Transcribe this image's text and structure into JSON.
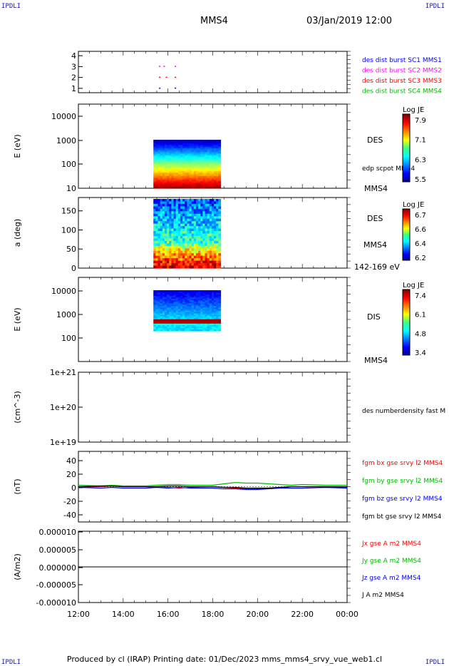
{
  "header": {
    "corner_tl": "IPDLI",
    "corner_tr": "IPDLI",
    "corner_bl": "IPDLI",
    "corner_br": "IPDLI",
    "title": "MMS4",
    "datetime": "03/Jan/2019 12:00"
  },
  "footer": {
    "text": "Produced by cl (IRAP)   Printing date: 01/Dec/2023   mms_mms4_srvy_vue_web1.cl"
  },
  "colors": {
    "blue": "#0000ff",
    "magenta": "#ff00ff",
    "red": "#ff0000",
    "green": "#00bb00",
    "black": "#000000"
  },
  "chart_data": [
    {
      "type": "scatter",
      "panel": "burst",
      "yticks": [
        "1",
        "2",
        "3",
        "4"
      ],
      "ylim": [
        0.6,
        4.4
      ],
      "legend": [
        {
          "name": "des dist burst SC1 MMS1",
          "color": "#0000ff"
        },
        {
          "name": "des dist burst SC2 MMS2",
          "color": "#ff00ff"
        },
        {
          "name": "des dist burst SC3 MMS3",
          "color": "#ff0000"
        },
        {
          "name": "des dist burst SC4 MMS4",
          "color": "#00bb00"
        }
      ],
      "points": [
        {
          "x": 15.6,
          "y": 3
        },
        {
          "x": 15.8,
          "y": 3
        },
        {
          "x": 16.3,
          "y": 3
        },
        {
          "x": 15.6,
          "y": 2
        },
        {
          "x": 15.9,
          "y": 2
        },
        {
          "x": 16.3,
          "y": 2
        },
        {
          "x": 15.6,
          "y": 1
        },
        {
          "x": 16.3,
          "y": 1
        }
      ]
    },
    {
      "type": "heatmap",
      "panel": "des-energy",
      "ylabel": "E (eV)",
      "yticks": [
        "10",
        "100",
        "1000",
        "10000"
      ],
      "ylim": [
        10,
        20000
      ],
      "xrange": [
        15.35,
        18.35
      ],
      "label": "DES",
      "sublabel": "edp scpot MMS4",
      "bottom_label": "MMS4",
      "colorbar": {
        "title": "Log JE",
        "ticks": [
          "7.9",
          "7.1",
          "6.3",
          "5.5"
        ]
      }
    },
    {
      "type": "heatmap",
      "panel": "des-pitch",
      "ylabel": "a (deg)",
      "yticks": [
        "0",
        "50",
        "100",
        "150"
      ],
      "ylim": [
        0,
        185
      ],
      "xrange": [
        15.35,
        18.35
      ],
      "label": "DES",
      "sublabel": "MMS4",
      "bottom_label": "142-169 eV",
      "colorbar": {
        "title": "Log JE",
        "ticks": [
          "6.7",
          "6.6",
          "6.4",
          "6.2"
        ]
      }
    },
    {
      "type": "heatmap",
      "panel": "dis-energy",
      "ylabel": "E (eV)",
      "yticks": [
        "100",
        "1000",
        "10000"
      ],
      "ylim": [
        10,
        20000
      ],
      "xrange": [
        15.35,
        18.35
      ],
      "label": "DIS",
      "bottom_label": "MMS4",
      "colorbar": {
        "title": "Log JE",
        "ticks": [
          "7.4",
          "6.1",
          "4.8",
          "3.4"
        ]
      }
    },
    {
      "type": "line",
      "panel": "density",
      "ylabel": "(cm^-3)",
      "yticks": [
        "1e+19",
        "1e+20",
        "1e+21"
      ],
      "legend": [
        {
          "name": "des numberdensity fast M",
          "color": "#000000"
        }
      ],
      "series": []
    },
    {
      "type": "line",
      "panel": "fgm",
      "ylabel": "(nT)",
      "yticks": [
        "-40",
        "-20",
        "0",
        "20",
        "40"
      ],
      "ylim": [
        -50,
        50
      ],
      "x": [
        12,
        13,
        13.5,
        14,
        15,
        15.5,
        16,
        16.5,
        17,
        18,
        18.5,
        19,
        19.5,
        20,
        20.5,
        21,
        21.5,
        22,
        23,
        24
      ],
      "series": [
        {
          "name": "fgm bx gse srvy l2 MMS4",
          "color": "#ff0000",
          "values": [
            -1,
            0,
            1,
            0,
            0,
            -1,
            -1,
            -2,
            -1,
            0,
            -1,
            -2,
            -3,
            -3,
            -2,
            -1,
            -2,
            -2,
            -1,
            -1
          ]
        },
        {
          "name": "fgm by gse srvy l2 MMS4",
          "color": "#00bb00",
          "values": [
            2,
            1,
            2,
            1,
            1,
            2,
            3,
            3,
            2,
            2,
            4,
            6,
            5,
            5,
            4,
            3,
            2,
            3,
            2,
            2
          ]
        },
        {
          "name": "fgm bz gse srvy l2 MMS4",
          "color": "#0000ff",
          "values": [
            -1,
            -2,
            -1,
            -2,
            -2,
            -1,
            -2,
            -1,
            -2,
            -2,
            -3,
            -3,
            -4,
            -4,
            -3,
            -2,
            -2,
            -2,
            -1,
            -2
          ]
        },
        {
          "name": "fgm bt gse srvy l2 MMS4",
          "color": "#000000",
          "values": [
            0,
            1,
            1,
            0,
            0,
            0,
            1,
            1,
            0,
            0,
            -1,
            -1,
            -2,
            -2,
            -2,
            -1,
            0,
            0,
            0,
            0
          ]
        }
      ]
    },
    {
      "type": "line",
      "panel": "current",
      "ylabel": "(A/m2)",
      "yticks": [
        "-0.000010",
        "-0.000005",
        "0.000000",
        "0.000005",
        "0.000010"
      ],
      "ylim": [
        -1e-05,
        1e-05
      ],
      "x": [
        12,
        24
      ],
      "series": [
        {
          "name": "Jx gse A m2 MMS4",
          "color": "#ff0000",
          "values": [
            0,
            0
          ]
        },
        {
          "name": "Jy gse A m2 MMS4",
          "color": "#00bb00",
          "values": [
            0,
            0
          ]
        },
        {
          "name": "Jz gse A m2 MMS4",
          "color": "#0000ff",
          "values": [
            0,
            0
          ]
        },
        {
          "name": "J A m2 MMS4",
          "color": "#000000",
          "values": [
            0,
            0
          ]
        }
      ]
    }
  ],
  "xaxis": {
    "ticks": [
      "12:00",
      "14:00",
      "16:00",
      "18:00",
      "20:00",
      "22:00",
      "00:00"
    ],
    "range": [
      12,
      24
    ]
  }
}
